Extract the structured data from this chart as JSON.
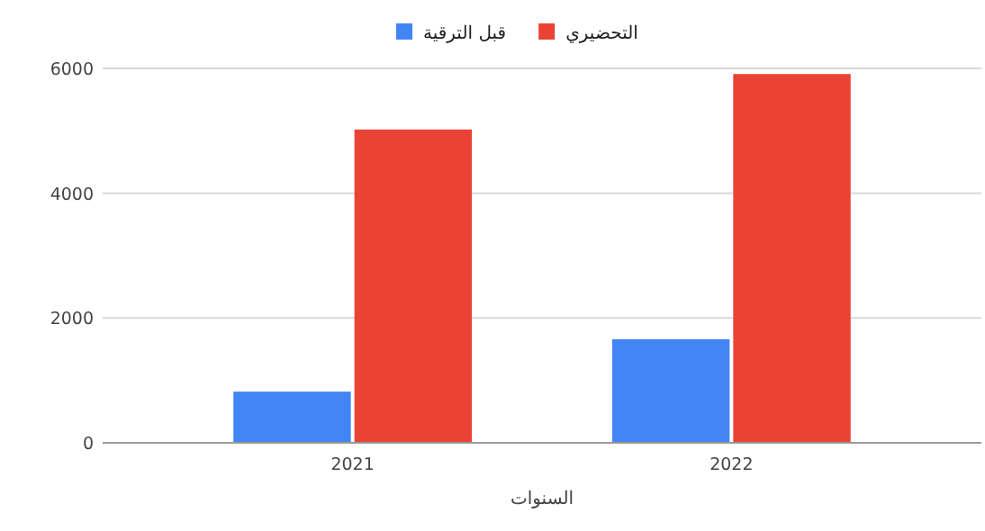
{
  "chart_data": {
    "type": "bar",
    "xlabel": "السنوات",
    "categories": [
      "2021",
      "2022"
    ],
    "series": [
      {
        "name": "قبل الترقية",
        "color": "#4285f4",
        "values": [
          820,
          1660
        ]
      },
      {
        "name": "التحضيري",
        "color": "#ea4335",
        "values": [
          5020,
          5910
        ]
      }
    ],
    "ylim": [
      0,
      6000
    ],
    "yticks": [
      0,
      2000,
      4000,
      6000
    ],
    "grid": "y",
    "legend": "top"
  }
}
